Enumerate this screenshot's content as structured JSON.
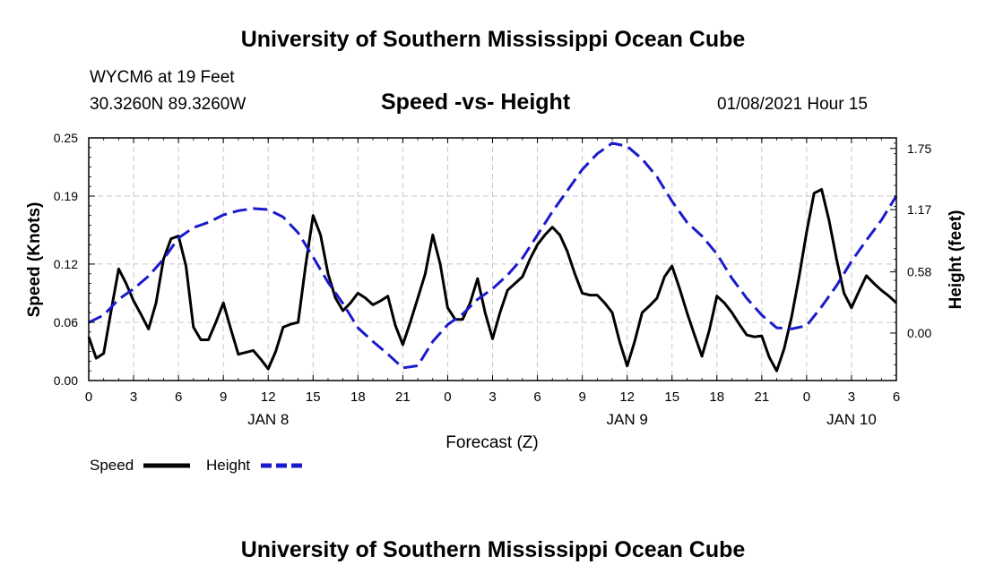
{
  "header": {
    "title": "University of Southern Mississippi Ocean Cube",
    "station": "WYCM6 at 19 Feet",
    "coords": "30.3260N 89.3260W",
    "chart_title": "Speed -vs- Height",
    "datetime": "01/08/2021 Hour 15"
  },
  "footer": {
    "title": "University of Southern Mississippi Ocean Cube"
  },
  "colors": {
    "speed": "#000000",
    "height": "#1a1acc",
    "grid": "#c8c8c8"
  },
  "chart_data": {
    "type": "line",
    "title": "Speed -vs- Height",
    "xlabel": "Forecast (Z)",
    "ylabel_left": "Speed (Knots)",
    "ylabel_right": "Height (feet)",
    "x_range_hours": [
      0,
      54
    ],
    "x_ticks": [
      {
        "hour": 0,
        "label": "0"
      },
      {
        "hour": 3,
        "label": "3"
      },
      {
        "hour": 6,
        "label": "6"
      },
      {
        "hour": 9,
        "label": "9"
      },
      {
        "hour": 12,
        "label": "12"
      },
      {
        "hour": 15,
        "label": "15"
      },
      {
        "hour": 18,
        "label": "18"
      },
      {
        "hour": 21,
        "label": "21"
      },
      {
        "hour": 24,
        "label": "0"
      },
      {
        "hour": 27,
        "label": "3"
      },
      {
        "hour": 30,
        "label": "6"
      },
      {
        "hour": 33,
        "label": "9"
      },
      {
        "hour": 36,
        "label": "12"
      },
      {
        "hour": 39,
        "label": "15"
      },
      {
        "hour": 42,
        "label": "18"
      },
      {
        "hour": 45,
        "label": "21"
      },
      {
        "hour": 48,
        "label": "0"
      },
      {
        "hour": 51,
        "label": "3"
      },
      {
        "hour": 54,
        "label": "6"
      }
    ],
    "day_labels": [
      {
        "hour": 12,
        "label": "JAN 8"
      },
      {
        "hour": 36,
        "label": "JAN 9"
      },
      {
        "hour": 51,
        "label": "JAN 10"
      }
    ],
    "y_left": {
      "range": [
        0,
        0.25
      ],
      "ticks": [
        0.0,
        0.06,
        0.12,
        0.19,
        0.25
      ],
      "labels": [
        "0.00",
        "0.06",
        "0.12",
        "0.19",
        "0.25"
      ]
    },
    "y_right": {
      "range": [
        -0.45,
        1.85
      ],
      "ticks": [
        0.0,
        0.58,
        1.17,
        1.75
      ],
      "labels": [
        "0.00",
        "0.58",
        "1.17",
        "1.75"
      ]
    },
    "series": [
      {
        "name": "Speed",
        "axis": "left",
        "x": [
          0,
          0.5,
          1,
          1.5,
          2,
          2.5,
          3,
          3.5,
          4,
          4.5,
          5,
          5.5,
          6,
          6.5,
          7,
          7.5,
          8,
          8.5,
          9,
          9.5,
          10,
          10.5,
          11,
          11.5,
          12,
          12.5,
          13,
          13.5,
          14,
          14.5,
          15,
          15.5,
          16,
          16.5,
          17,
          17.5,
          18,
          18.5,
          19,
          19.5,
          20,
          20.5,
          21,
          21.5,
          22,
          22.5,
          23,
          23.5,
          24,
          24.5,
          25,
          25.5,
          26,
          26.5,
          27,
          27.5,
          28,
          28.5,
          29,
          29.5,
          30,
          30.5,
          31,
          31.5,
          32,
          32.5,
          33,
          33.5,
          34,
          34.5,
          35,
          35.5,
          36,
          36.5,
          37,
          37.5,
          38,
          38.5,
          39,
          39.5,
          40,
          40.5,
          41,
          41.5,
          42,
          42.5,
          43,
          43.5,
          44,
          44.5,
          45,
          45.5,
          46,
          46.5,
          47,
          47.5,
          48,
          48.5,
          49,
          49.5,
          50,
          50.5,
          51,
          51.5,
          52,
          52.5,
          53,
          53.5,
          54
        ],
        "values": [
          0.045,
          0.023,
          0.028,
          0.072,
          0.115,
          0.1,
          0.082,
          0.068,
          0.053,
          0.08,
          0.125,
          0.146,
          0.149,
          0.118,
          0.055,
          0.042,
          0.042,
          0.06,
          0.08,
          0.053,
          0.027,
          0.029,
          0.031,
          0.022,
          0.012,
          0.03,
          0.055,
          0.058,
          0.06,
          0.118,
          0.17,
          0.15,
          0.11,
          0.085,
          0.072,
          0.08,
          0.09,
          0.085,
          0.078,
          0.082,
          0.087,
          0.057,
          0.037,
          0.06,
          0.085,
          0.11,
          0.15,
          0.12,
          0.075,
          0.063,
          0.063,
          0.08,
          0.105,
          0.07,
          0.043,
          0.07,
          0.093,
          0.1,
          0.107,
          0.125,
          0.14,
          0.15,
          0.158,
          0.15,
          0.133,
          0.11,
          0.09,
          0.088,
          0.088,
          0.08,
          0.07,
          0.04,
          0.015,
          0.04,
          0.07,
          0.077,
          0.085,
          0.107,
          0.118,
          0.095,
          0.07,
          0.047,
          0.025,
          0.052,
          0.087,
          0.08,
          0.07,
          0.058,
          0.047,
          0.045,
          0.046,
          0.024,
          0.01,
          0.033,
          0.066,
          0.107,
          0.153,
          0.193,
          0.197,
          0.165,
          0.125,
          0.09,
          0.075,
          0.092,
          0.108,
          0.1,
          0.093,
          0.087,
          0.08
        ]
      },
      {
        "name": "Height",
        "axis": "right",
        "x": [
          0,
          1,
          2,
          3,
          4,
          5,
          6,
          7,
          8,
          9,
          10,
          11,
          12,
          13,
          14,
          15,
          16,
          17,
          18,
          19,
          20,
          21,
          22,
          23,
          24,
          25,
          26,
          27,
          28,
          29,
          30,
          31,
          32,
          33,
          34,
          35,
          36,
          37,
          38,
          39,
          40,
          41,
          42,
          43,
          44,
          45,
          46,
          47,
          48,
          49,
          50,
          51,
          52,
          53,
          54
        ],
        "values": [
          0.1,
          0.17,
          0.32,
          0.42,
          0.54,
          0.7,
          0.9,
          1.0,
          1.05,
          1.12,
          1.16,
          1.18,
          1.17,
          1.1,
          0.95,
          0.72,
          0.48,
          0.28,
          0.05,
          -0.08,
          -0.2,
          -0.33,
          -0.31,
          -0.08,
          0.08,
          0.18,
          0.32,
          0.42,
          0.55,
          0.71,
          0.93,
          1.15,
          1.35,
          1.55,
          1.7,
          1.8,
          1.77,
          1.65,
          1.48,
          1.25,
          1.05,
          0.92,
          0.75,
          0.52,
          0.33,
          0.17,
          0.05,
          0.04,
          0.07,
          0.25,
          0.45,
          0.68,
          0.88,
          1.07,
          1.3
        ]
      }
    ],
    "legend": [
      {
        "name": "Speed",
        "style": "solid"
      },
      {
        "name": "Height",
        "style": "dashed"
      }
    ]
  }
}
